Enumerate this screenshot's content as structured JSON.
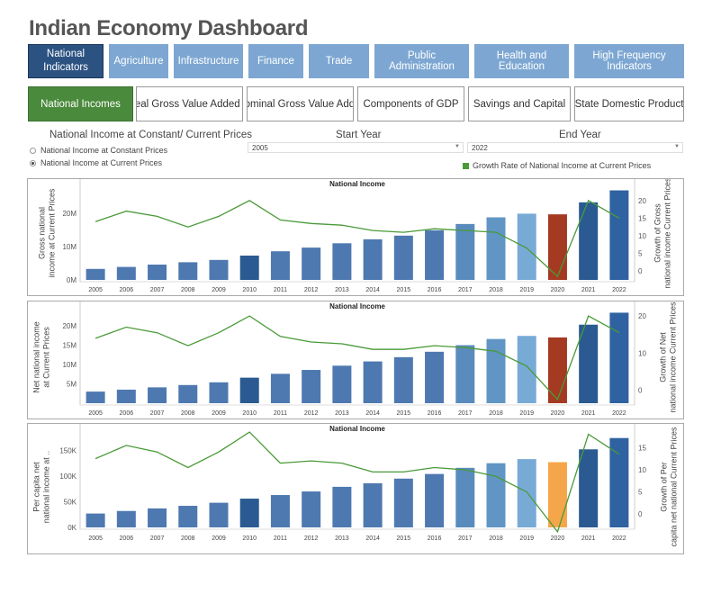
{
  "app_title": "Indian Economy Dashboard",
  "top_tabs": [
    {
      "label": "National\nIndicators",
      "active": true
    },
    {
      "label": "Agriculture",
      "active": false
    },
    {
      "label": "Infrastructure",
      "active": false
    },
    {
      "label": "Finance",
      "active": false
    },
    {
      "label": "Trade",
      "active": false
    },
    {
      "label": "Public Administration",
      "active": false
    },
    {
      "label": "Health and Education",
      "active": false
    },
    {
      "label": "High Frequency Indicators",
      "active": false
    }
  ],
  "sub_tabs": [
    {
      "label": "National Incomes",
      "active": true
    },
    {
      "label": "Real Gross Value Added ...",
      "active": false
    },
    {
      "label": "Nominal Gross Value Add...",
      "active": false
    },
    {
      "label": "Components of GDP",
      "active": false
    },
    {
      "label": "Savings and Capital",
      "active": false
    },
    {
      "label": "State Domestic Product",
      "active": false
    }
  ],
  "controls": {
    "price_toggle_label": "National Income at Constant/ Current Prices",
    "options": [
      {
        "label": "National Income at Constant Prices",
        "selected": false
      },
      {
        "label": "National Income at Current Prices",
        "selected": true
      }
    ],
    "start_year_label": "Start Year",
    "start_year_value": "2005",
    "end_year_label": "End Year",
    "end_year_value": "2022",
    "legend_label": "Growth Rate of National Income at Current Prices",
    "line_color": "#4a9a38"
  },
  "chart_data": [
    {
      "type": "bar",
      "title": "National Income",
      "ylabel": "Gross national income at Current Prices",
      "y2label": "Growth of Gross national income Current Prices",
      "categories": [
        "2005",
        "2006",
        "2007",
        "2008",
        "2009",
        "2010",
        "2011",
        "2012",
        "2013",
        "2014",
        "2015",
        "2016",
        "2017",
        "2018",
        "2019",
        "2020",
        "2021",
        "2022"
      ],
      "y_ticks": [
        "0M",
        "10M",
        "20M"
      ],
      "y_tick_values": [
        0,
        10,
        20
      ],
      "ylim": [
        0,
        26.5
      ],
      "y2_ticks": [
        "0",
        "5",
        "10",
        "15",
        "20"
      ],
      "y2_tick_values": [
        0,
        5,
        10,
        15,
        20
      ],
      "y2lim": [
        -2.5,
        22.5
      ],
      "series": [
        {
          "values": [
            3.3,
            3.9,
            4.6,
            5.3,
            6.0,
            7.3,
            8.6,
            9.7,
            11.0,
            12.2,
            13.3,
            14.9,
            16.8,
            18.8,
            19.9,
            19.7,
            23.3,
            26.9
          ]
        }
      ],
      "bar_colors": [
        "#4e79b0",
        "#4e79b0",
        "#4e79b0",
        "#4e79b0",
        "#4e79b0",
        "#2a5a91",
        "#4e79b0",
        "#4e79b0",
        "#4e79b0",
        "#4e79b0",
        "#4e79b0",
        "#4e79b0",
        "#5a8bbd",
        "#6195c4",
        "#78aad6",
        "#a43a22",
        "#2a5a91",
        "#2f62a0"
      ],
      "growth": [
        14.0,
        17.0,
        15.5,
        12.5,
        15.5,
        20.0,
        14.5,
        13.5,
        13.0,
        11.5,
        11.0,
        12.0,
        11.5,
        11.0,
        6.5,
        -1.5,
        20.0,
        15.0
      ]
    },
    {
      "type": "bar",
      "title": "National Income",
      "ylabel": "Net national income at Current Prices",
      "y2label": "Growth of Net national income Current Prices",
      "categories": [
        "2005",
        "2006",
        "2007",
        "2008",
        "2009",
        "2010",
        "2011",
        "2012",
        "2013",
        "2014",
        "2015",
        "2016",
        "2017",
        "2018",
        "2019",
        "2020",
        "2021",
        "2022"
      ],
      "y_ticks": [
        "5M",
        "10M",
        "15M",
        "20M"
      ],
      "y_tick_values": [
        5,
        10,
        15,
        20
      ],
      "ylim": [
        0,
        23.5
      ],
      "y2_ticks": [
        "0",
        "10",
        "20"
      ],
      "y2_tick_values": [
        0,
        10,
        20
      ],
      "y2lim": [
        -3.5,
        21.0
      ],
      "series": [
        {
          "values": [
            3.0,
            3.5,
            4.1,
            4.7,
            5.4,
            6.6,
            7.6,
            8.6,
            9.7,
            10.8,
            11.9,
            13.3,
            15.0,
            16.6,
            17.4,
            17.0,
            20.3,
            23.4
          ]
        }
      ],
      "bar_colors": [
        "#4e79b0",
        "#4e79b0",
        "#4e79b0",
        "#4e79b0",
        "#4e79b0",
        "#2a5a91",
        "#4e79b0",
        "#4e79b0",
        "#4e79b0",
        "#4e79b0",
        "#4e79b0",
        "#4e79b0",
        "#5a8bbd",
        "#6195c4",
        "#78aad6",
        "#a43a22",
        "#2a5a91",
        "#2f62a0"
      ],
      "growth": [
        14.0,
        17.0,
        15.5,
        12.0,
        15.5,
        20.0,
        14.5,
        13.0,
        12.5,
        11.0,
        11.0,
        12.0,
        11.5,
        10.5,
        6.5,
        -2.5,
        20.0,
        15.5
      ]
    },
    {
      "type": "bar",
      "title": "National Income",
      "ylabel": "Per capita net national income at ..",
      "y2label": "Growth of Per capita net national Current Prices",
      "categories": [
        "2005",
        "2006",
        "2007",
        "2008",
        "2009",
        "2010",
        "2011",
        "2012",
        "2013",
        "2014",
        "2015",
        "2016",
        "2017",
        "2018",
        "2019",
        "2020",
        "2021",
        "2022"
      ],
      "y_ticks": [
        "0K",
        "50K",
        "100K",
        "150K"
      ],
      "y_tick_values": [
        0,
        50,
        100,
        150
      ],
      "ylim": [
        0,
        177
      ],
      "y2_ticks": [
        "0",
        "5",
        "10",
        "15"
      ],
      "y2_tick_values": [
        0,
        5,
        10,
        15
      ],
      "y2lim": [
        -3.0,
        17.5
      ],
      "series": [
        {
          "values": [
            27,
            32,
            37,
            42,
            48,
            56,
            63,
            70,
            79,
            86,
            95,
            104,
            116,
            125,
            133,
            127,
            152,
            174
          ]
        }
      ],
      "bar_colors": [
        "#4e79b0",
        "#4e79b0",
        "#4e79b0",
        "#4e79b0",
        "#4e79b0",
        "#2a5a91",
        "#4e79b0",
        "#4e79b0",
        "#4e79b0",
        "#4e79b0",
        "#4e79b0",
        "#4e79b0",
        "#5a8bbd",
        "#6195c4",
        "#78aad6",
        "#f6a64a",
        "#2a5a91",
        "#2f62a0"
      ],
      "growth": [
        12.5,
        15.5,
        14.0,
        10.5,
        14.0,
        18.5,
        11.5,
        12.0,
        11.5,
        9.5,
        9.5,
        10.5,
        10.0,
        8.5,
        5.0,
        -4.0,
        18.0,
        13.5
      ]
    }
  ]
}
